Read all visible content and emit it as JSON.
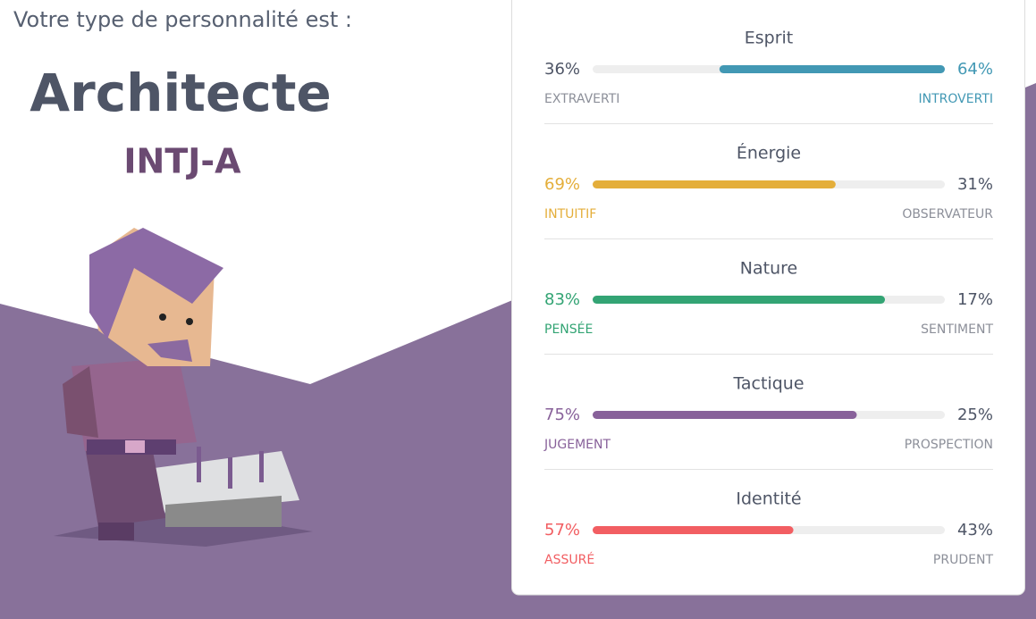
{
  "header": {
    "intro": "Votre type de personnalité est :",
    "title": "Architecte",
    "code": "INTJ-A"
  },
  "traits": [
    {
      "name": "Esprit",
      "values": [
        36,
        64
      ],
      "value_labels": [
        "36%",
        "64%"
      ],
      "labels": [
        "EXTRAVERTI",
        "INTROVERTI"
      ],
      "color": "#4298b4"
    },
    {
      "name": "Énergie",
      "values": [
        69,
        31
      ],
      "value_labels": [
        "69%",
        "31%"
      ],
      "labels": [
        "INTUITIF",
        "OBSERVATEUR"
      ],
      "color": "#e4ae3a"
    },
    {
      "name": "Nature",
      "values": [
        83,
        17
      ],
      "value_labels": [
        "83%",
        "17%"
      ],
      "labels": [
        "PENSÉE",
        "SENTIMENT"
      ],
      "color": "#33a474"
    },
    {
      "name": "Tactique",
      "values": [
        75,
        25
      ],
      "value_labels": [
        "75%",
        "25%"
      ],
      "labels": [
        "JUGEMENT",
        "PROSPECTION"
      ],
      "color": "#88619a"
    },
    {
      "name": "Identité",
      "values": [
        57,
        43
      ],
      "value_labels": [
        "57%",
        "43%"
      ],
      "labels": [
        "ASSURÉ",
        "PRUDENT"
      ],
      "color": "#f25e62"
    }
  ]
}
